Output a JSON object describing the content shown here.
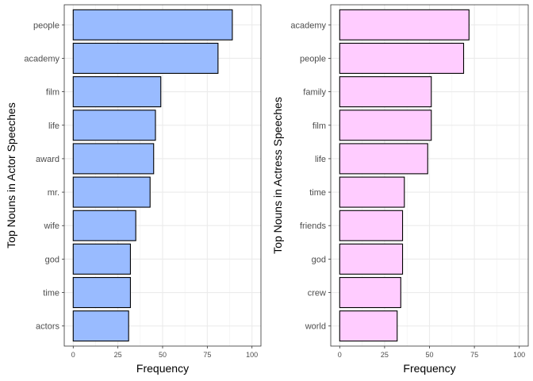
{
  "chart_data": [
    {
      "type": "bar",
      "orientation": "horizontal",
      "categories": [
        "people",
        "academy",
        "film",
        "life",
        "award",
        "mr.",
        "wife",
        "god",
        "time",
        "actors"
      ],
      "values": [
        89,
        81,
        49,
        46,
        45,
        43,
        35,
        32,
        32,
        31
      ],
      "xlabel": "Frequency",
      "ylabel": "Top Nouns in Actor Speeches",
      "xlim": [
        0,
        100
      ],
      "xticks": [
        "0",
        "25",
        "50",
        "75",
        "100"
      ],
      "fill_color": "#99bbff",
      "grid": true,
      "legend": "none"
    },
    {
      "type": "bar",
      "orientation": "horizontal",
      "categories": [
        "academy",
        "people",
        "family",
        "film",
        "life",
        "time",
        "friends",
        "god",
        "crew",
        "world"
      ],
      "values": [
        72,
        69,
        51,
        51,
        49,
        36,
        35,
        35,
        34,
        32
      ],
      "xlabel": "Frequency",
      "ylabel": "Top Nouns in Actress Speeches",
      "xlim": [
        0,
        100
      ],
      "xticks": [
        "0",
        "25",
        "50",
        "75",
        "100"
      ],
      "fill_color": "#ffccff",
      "grid": true,
      "legend": "none"
    }
  ]
}
